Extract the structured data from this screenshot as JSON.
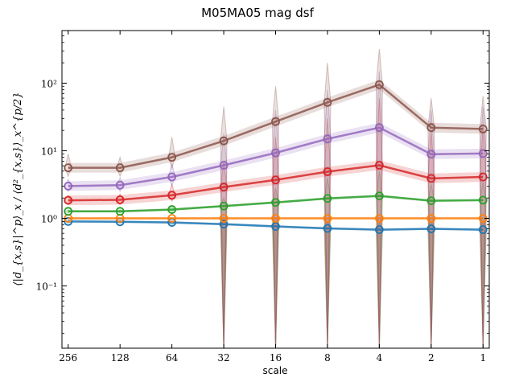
{
  "chart_data": {
    "type": "line",
    "title": "M05MA05 mag dsf",
    "xlabel": "scale",
    "ylabel": "⟨|d_{x,s}|^p⟩_x / ⟨d²_{x,s}⟩_x^{p/2}",
    "x": [
      256,
      128,
      64,
      32,
      16,
      8,
      4,
      2,
      1
    ],
    "x_scale": "log2",
    "x_inverted": true,
    "y_scale": "log",
    "ylim": [
      0.012,
      600
    ],
    "xtick_labels": [
      "256",
      "128",
      "64",
      "32",
      "16",
      "8",
      "4",
      "2",
      "1"
    ],
    "ytick_labels": [
      {
        "value": 0.1,
        "label": "10⁻¹"
      },
      {
        "value": 1,
        "label": "10⁰"
      },
      {
        "value": 10,
        "label": "10¹"
      },
      {
        "value": 100,
        "label": "10²"
      }
    ],
    "grid": false,
    "series": [
      {
        "color": "#1f77b4",
        "values": [
          0.9,
          0.89,
          0.87,
          0.82,
          0.76,
          0.71,
          0.68,
          0.7,
          0.68
        ],
        "lower": [
          0.85,
          0.84,
          0.8,
          0.012,
          0.012,
          0.012,
          0.012,
          0.012,
          0.012
        ],
        "upper": [
          0.95,
          0.94,
          0.93,
          0.9,
          0.88,
          0.86,
          0.85,
          0.86,
          0.86
        ]
      },
      {
        "color": "#ff7f0e",
        "values": [
          1.0,
          1.0,
          1.0,
          1.0,
          1.0,
          1.0,
          1.0,
          1.0,
          1.0
        ],
        "lower": [
          0.98,
          0.98,
          0.98,
          0.012,
          0.012,
          0.012,
          0.012,
          0.012,
          0.012
        ],
        "upper": [
          1.02,
          1.02,
          1.02,
          1.02,
          1.02,
          1.02,
          1.02,
          1.02,
          1.02
        ]
      },
      {
        "color": "#2ca02c",
        "values": [
          1.27,
          1.27,
          1.35,
          1.52,
          1.72,
          1.97,
          2.15,
          1.82,
          1.86
        ],
        "lower": [
          1.2,
          1.2,
          1.25,
          0.012,
          0.012,
          0.012,
          0.012,
          0.012,
          0.012
        ],
        "upper": [
          1.35,
          1.35,
          1.5,
          2.0,
          2.8,
          4.0,
          5.0,
          3.2,
          3.5
        ]
      },
      {
        "color": "#d62728",
        "values": [
          1.85,
          1.88,
          2.2,
          2.9,
          3.7,
          4.9,
          6.1,
          3.9,
          4.1
        ],
        "lower": [
          1.6,
          1.6,
          1.8,
          0.012,
          0.012,
          0.012,
          0.012,
          0.012,
          0.012
        ],
        "upper": [
          2.2,
          2.3,
          3.2,
          7.0,
          16,
          30,
          60,
          20,
          25
        ]
      },
      {
        "color": "#9467bd",
        "values": [
          3.0,
          3.1,
          4.1,
          6.1,
          9.3,
          15,
          22,
          8.9,
          9.1
        ],
        "lower": [
          2.5,
          2.5,
          3.0,
          0.012,
          0.012,
          0.012,
          0.012,
          0.012,
          0.012
        ],
        "upper": [
          3.8,
          4.0,
          6.5,
          18,
          40,
          80,
          150,
          40,
          45
        ]
      },
      {
        "color": "#8c564b",
        "values": [
          5.6,
          5.6,
          8.0,
          14,
          27,
          52,
          95,
          22,
          21
        ],
        "lower": [
          4.2,
          4.2,
          5.5,
          0.012,
          0.012,
          0.012,
          0.012,
          0.012,
          0.012
        ],
        "upper": [
          9.0,
          8.0,
          16,
          45,
          90,
          200,
          320,
          60,
          65
        ]
      }
    ]
  }
}
